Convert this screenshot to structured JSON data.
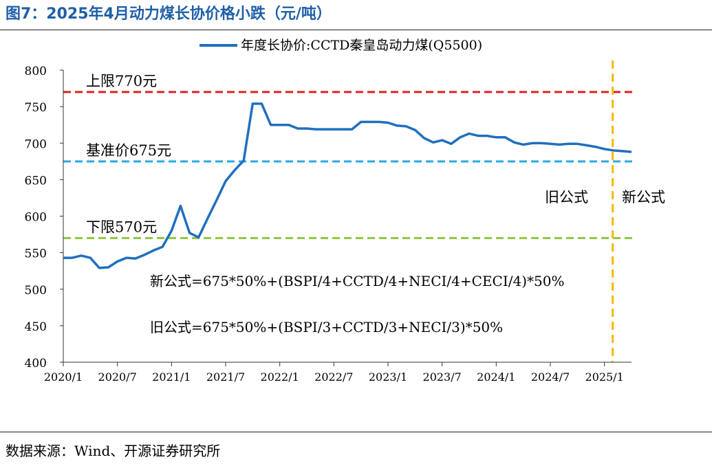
{
  "figure": {
    "title": "图7：2025年4月动力煤长协价格小跌（元/吨）",
    "source": "数据来源：Wind、开源证券研究所"
  },
  "colors": {
    "title": "#1f5fa8",
    "series": "#1f6fbf",
    "upper": "#e02020",
    "base": "#29a8e0",
    "lower": "#8cc63f",
    "split": "#f5b800"
  },
  "chart_data": {
    "type": "line",
    "legend_position": "top-center",
    "grid": false,
    "ylim": [
      400,
      800
    ],
    "yticks": [
      400,
      450,
      500,
      550,
      600,
      650,
      700,
      750,
      800
    ],
    "xlim": [
      "2020-01",
      "2025-04"
    ],
    "xticks": [
      "2020/1",
      "2020/7",
      "2021/1",
      "2021/7",
      "2022/1",
      "2022/7",
      "2023/1",
      "2023/7",
      "2024/1",
      "2024/7",
      "2025/1"
    ],
    "series": [
      {
        "name": "年度长协价:CCTD秦皇岛动力煤(Q5500)",
        "x": [
          "2020-01",
          "2020-02",
          "2020-03",
          "2020-04",
          "2020-05",
          "2020-06",
          "2020-07",
          "2020-08",
          "2020-09",
          "2020-10",
          "2020-11",
          "2020-12",
          "2021-01",
          "2021-02",
          "2021-03",
          "2021-04",
          "2021-05",
          "2021-06",
          "2021-07",
          "2021-08",
          "2021-09",
          "2021-10",
          "2021-11",
          "2021-12",
          "2022-01",
          "2022-02",
          "2022-03",
          "2022-04",
          "2022-05",
          "2022-06",
          "2022-07",
          "2022-08",
          "2022-09",
          "2022-10",
          "2022-11",
          "2022-12",
          "2023-01",
          "2023-02",
          "2023-03",
          "2023-04",
          "2023-05",
          "2023-06",
          "2023-07",
          "2023-08",
          "2023-09",
          "2023-10",
          "2023-11",
          "2023-12",
          "2024-01",
          "2024-02",
          "2024-03",
          "2024-04",
          "2024-05",
          "2024-06",
          "2024-07",
          "2024-08",
          "2024-09",
          "2024-10",
          "2024-11",
          "2024-12",
          "2025-01",
          "2025-02",
          "2025-03",
          "2025-04"
        ],
        "y": [
          543,
          543,
          546,
          543,
          529,
          530,
          538,
          543,
          542,
          547,
          553,
          558,
          580,
          614,
          577,
          571,
          597,
          622,
          648,
          663,
          676,
          754,
          754,
          725,
          725,
          725,
          720,
          720,
          719,
          719,
          719,
          719,
          719,
          729,
          729,
          729,
          728,
          724,
          723,
          718,
          707,
          701,
          704,
          699,
          708,
          713,
          710,
          710,
          708,
          708,
          701,
          698,
          700,
          700,
          699,
          698,
          699,
          699,
          697,
          695,
          692,
          690,
          689,
          688
        ]
      }
    ],
    "reference_lines": [
      {
        "label": "上限770元",
        "value": 770
      },
      {
        "label": "基准价675元",
        "value": 675
      },
      {
        "label": "下限570元",
        "value": 570
      }
    ],
    "split_line": {
      "x": "2025-01",
      "left_label": "旧公式",
      "right_label": "新公式"
    },
    "annotations": [
      "新公式=675*50%+(BSPI/4+CCTD/4+NECI/4+CECI/4)*50%",
      "旧公式=675*50%+(BSPI/3+CCTD/3+NECI/3)*50%"
    ]
  }
}
